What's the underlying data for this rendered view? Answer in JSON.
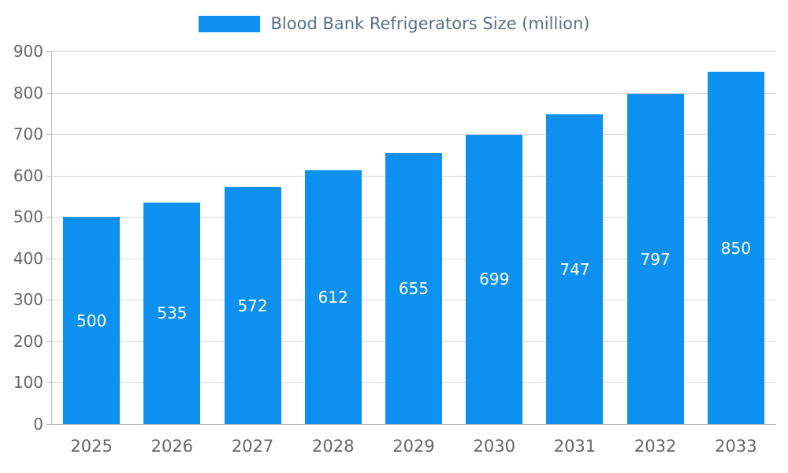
{
  "legend": {
    "label": "Blood Bank Refrigerators Size (million)"
  },
  "chart_data": {
    "type": "bar",
    "title": "Blood Bank Refrigerators Size (million)",
    "categories": [
      "2025",
      "2026",
      "2027",
      "2028",
      "2029",
      "2030",
      "2031",
      "2032",
      "2033"
    ],
    "values": [
      500,
      535,
      572,
      612,
      655,
      699,
      747,
      797,
      850
    ],
    "xlabel": "",
    "ylabel": "",
    "ylim": [
      0,
      900
    ],
    "ytick_step": 100,
    "grid": true,
    "legend_position": "top-center",
    "bar_color": "#0e90f0",
    "bar_label_color": "#ffffff",
    "axis_text_color": "#666666",
    "legend_text_color": "#5b7085",
    "gridline_color": "#d9d9d9"
  }
}
